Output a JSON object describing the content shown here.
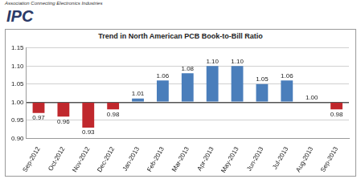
{
  "logo": {
    "name": "IPC",
    "tagline": "Association Connecting Electronics Industries"
  },
  "chart_data": {
    "type": "bar",
    "title": "Trend in North American PCB Book-to-Bill Ratio",
    "categories": [
      "Sep-2012",
      "Oct-2012",
      "Nov-2012",
      "Dec-2012",
      "Jan-2013",
      "Feb-2013",
      "Mar-2013",
      "Apr-2013",
      "May-2013",
      "Jun-2013",
      "Jul-2013",
      "Aug-2013",
      "Sep-2013"
    ],
    "values": [
      0.97,
      0.96,
      0.93,
      0.98,
      1.01,
      1.06,
      1.08,
      1.1,
      1.1,
      1.05,
      1.06,
      1.0,
      0.98
    ],
    "value_labels": [
      "0.97",
      "0.96",
      "0.93",
      "0.98",
      "1.01",
      "1.06",
      "1.08",
      "1.10",
      "1.10",
      "1.05",
      "1.06",
      "1.00",
      "0.98"
    ],
    "colors": [
      "#c0282d",
      "#c0282d",
      "#c0282d",
      "#c0282d",
      "#4a7ebb",
      "#4a7ebb",
      "#4a7ebb",
      "#4a7ebb",
      "#4a7ebb",
      "#4a7ebb",
      "#4a7ebb",
      "#4a7ebb",
      "#c0282d"
    ],
    "baseline": 1.0,
    "ylim": [
      0.9,
      1.15
    ],
    "yticks": [
      {
        "value": 0.9,
        "label": "0.90"
      },
      0.95,
      {
        "value": 1.0,
        "label": "1.00"
      },
      1.05,
      {
        "value": 1.1,
        "label": "1.10"
      },
      1.15
    ],
    "grid": true,
    "data_labels": true
  }
}
